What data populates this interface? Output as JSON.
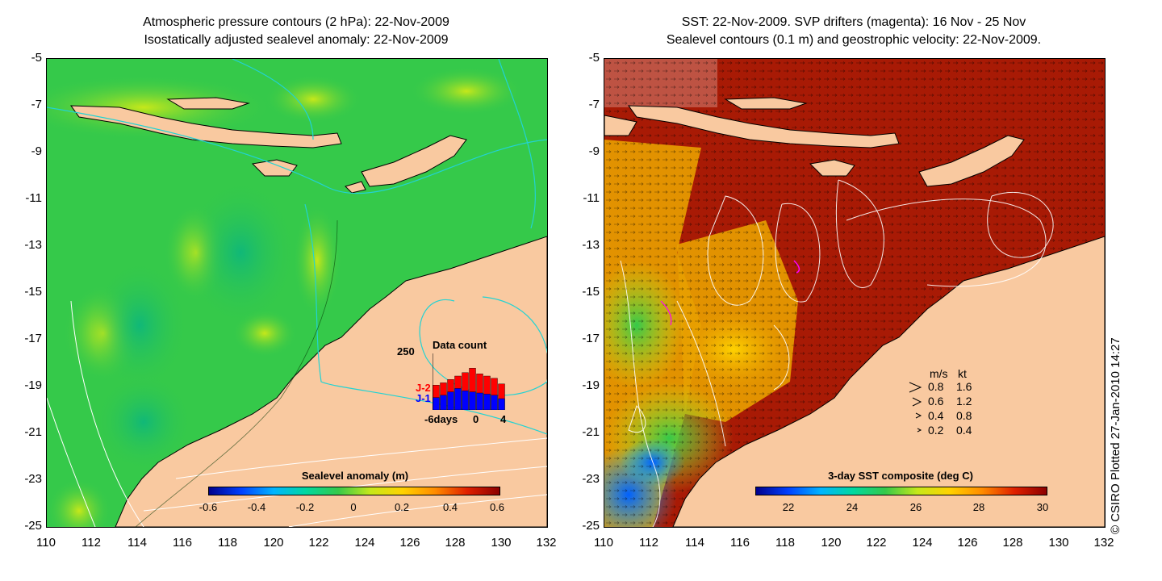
{
  "left_panel": {
    "title_line1": "Atmospheric pressure contours (2 hPa): 22-Nov-2009",
    "title_line2": "Isostatically adjusted sealevel anomaly: 22-Nov-2009",
    "y_ticks": [
      "-5",
      "-7",
      "-9",
      "-11",
      "-13",
      "-15",
      "-17",
      "-19",
      "-21",
      "-23",
      "-25"
    ],
    "x_ticks": [
      "110",
      "112",
      "114",
      "116",
      "118",
      "120",
      "122",
      "124",
      "126",
      "128",
      "130",
      "132"
    ],
    "colorbar": {
      "title": "Sealevel anomaly (m)",
      "ticks": [
        "-0.6",
        "-0.4",
        "-0.2",
        "0",
        "0.2",
        "0.4",
        "0.6"
      ]
    },
    "inset": {
      "title": "Data count",
      "ymax_label": "250",
      "series": [
        {
          "name": "J-2",
          "color": "#ff0000",
          "values": [
            110,
            120,
            135,
            150,
            165,
            185,
            160,
            150,
            140,
            115
          ]
        },
        {
          "name": "J-1",
          "color": "#0000ff",
          "values": [
            55,
            65,
            80,
            95,
            85,
            80,
            75,
            70,
            65,
            50
          ]
        }
      ],
      "x_labels": [
        "-6days",
        "0",
        "4"
      ],
      "ymax": 250
    }
  },
  "right_panel": {
    "title_line1": "SST: 22-Nov-2009. SVP drifters (magenta): 16 Nov - 25 Nov",
    "title_line2": "Sealevel contours (0.1 m) and geostrophic velocity: 22-Nov-2009.",
    "y_ticks": [
      "-5",
      "-7",
      "-9",
      "-11",
      "-13",
      "-15",
      "-17",
      "-19",
      "-21",
      "-23",
      "-25"
    ],
    "x_ticks": [
      "110",
      "112",
      "114",
      "116",
      "118",
      "120",
      "122",
      "124",
      "126",
      "128",
      "130",
      "132"
    ],
    "colorbar": {
      "title": "3-day SST composite (deg C)",
      "ticks": [
        "22",
        "24",
        "26",
        "28",
        "30"
      ]
    },
    "velocity_legend": {
      "header_ms": "m/s",
      "header_kt": "kt",
      "rows": [
        {
          "ms": "0.8",
          "kt": "1.6"
        },
        {
          "ms": "0.6",
          "kt": "1.2"
        },
        {
          "ms": "0.4",
          "kt": "0.8"
        },
        {
          "ms": "0.2",
          "kt": "0.4"
        }
      ]
    }
  },
  "credit": "© CSIRO Plotted 27-Jan-2010 14:27",
  "colors": {
    "land": "#f9c9a0",
    "ocean_left": "#35c94a",
    "sst_hot": "#a81a05",
    "sst_mid": "#e8a000",
    "contour_cyan": "#22d3d3"
  }
}
